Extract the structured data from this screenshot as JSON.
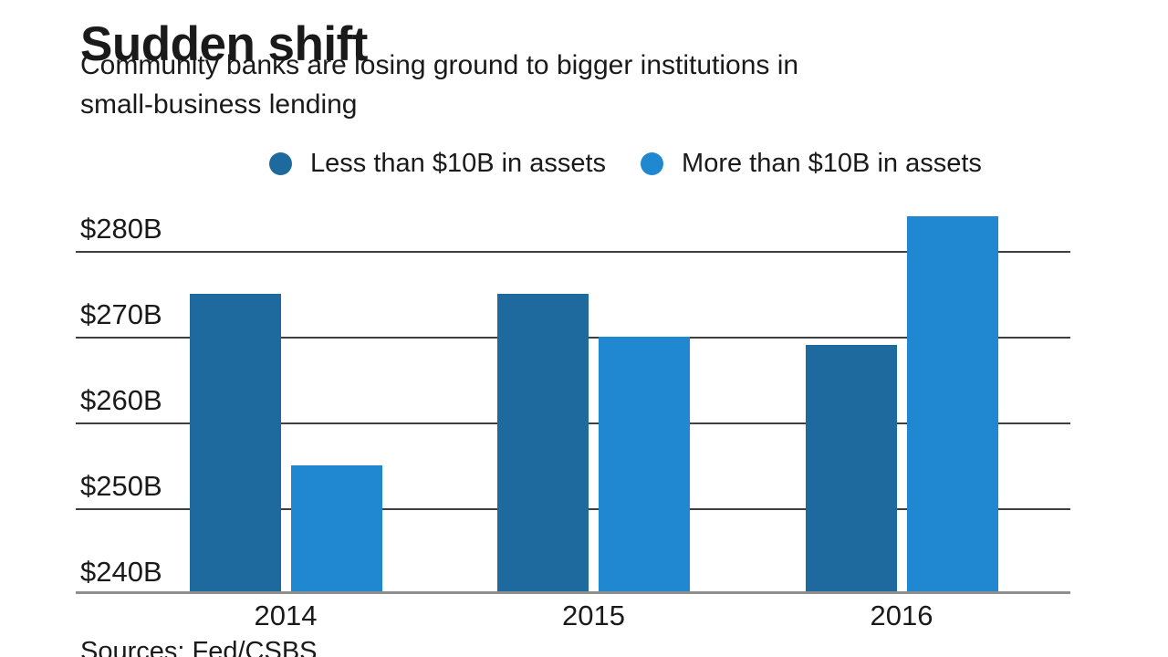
{
  "header": {
    "title": "Sudden shift",
    "subtitle_line1": "Community banks are losing ground to bigger institutions in",
    "subtitle_line2": "small-business lending"
  },
  "source": {
    "text": "Sources: Fed/CSBS"
  },
  "colors": {
    "background": "#ffffff",
    "text": "#1a1a1a",
    "series_dark_blue": "#1e699e",
    "series_light_blue": "#2088d0",
    "gridline": "#3f3f3f",
    "axis_line": "#8f8f8f"
  },
  "chart_data": {
    "type": "bar",
    "title": "Sudden shift",
    "subtitle": "Community banks are losing ground to bigger institutions in small-business lending",
    "categories": [
      "2014",
      "2015",
      "2016"
    ],
    "series": [
      {
        "name": "Less than $10B in assets",
        "color": "#1e699e",
        "values": [
          275,
          275,
          269
        ]
      },
      {
        "name": "More than $10B in assets",
        "color": "#2088d0",
        "values": [
          255,
          270,
          284
        ]
      }
    ],
    "unit": "billions of dollars",
    "y_ticks": [
      {
        "label": "$280B",
        "value": 280
      },
      {
        "label": "$270B",
        "value": 270
      },
      {
        "label": "$260B",
        "value": 260
      },
      {
        "label": "$250B",
        "value": 250
      },
      {
        "label": "$240B",
        "value": 240
      }
    ],
    "ylim": [
      240,
      285
    ],
    "grid": true,
    "legend_position": "top",
    "source": "Sources: Fed/CSBS"
  }
}
